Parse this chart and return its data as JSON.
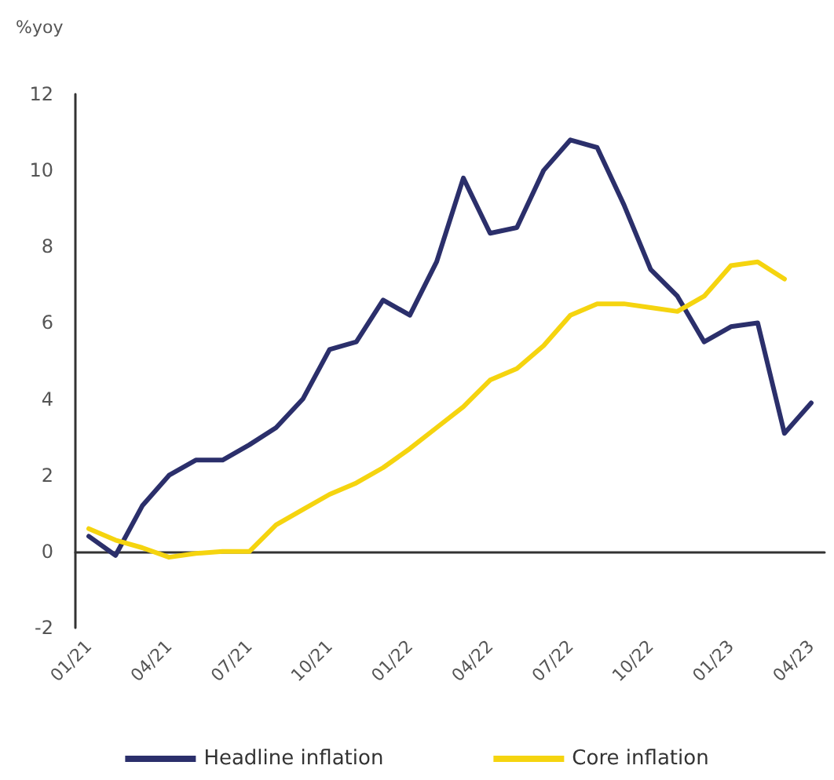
{
  "chart_data": {
    "type": "line",
    "ylabel": "%yoy",
    "categories": [
      "01/21",
      null,
      null,
      "04/21",
      null,
      null,
      "07/21",
      null,
      null,
      "10/21",
      null,
      null,
      "01/22",
      null,
      null,
      "04/22",
      null,
      null,
      "07/22",
      null,
      null,
      "10/22",
      null,
      null,
      "01/23",
      null,
      null,
      "04/23"
    ],
    "series": [
      {
        "name": "Headline inflation",
        "color": "#2b2f6b",
        "values": [
          0.4,
          -0.1,
          1.2,
          2.0,
          2.4,
          2.4,
          2.8,
          3.25,
          4.0,
          5.3,
          5.5,
          6.6,
          6.2,
          7.6,
          9.8,
          8.35,
          8.5,
          10.0,
          10.8,
          10.6,
          9.1,
          7.4,
          6.7,
          5.5,
          5.9,
          6.0,
          3.1,
          3.9
        ]
      },
      {
        "name": "Core inflation",
        "color": "#f5d40f",
        "values": [
          0.6,
          0.3,
          0.1,
          -0.15,
          -0.05,
          0.0,
          0.0,
          0.7,
          1.1,
          1.5,
          1.8,
          2.2,
          2.7,
          3.25,
          3.8,
          4.5,
          4.8,
          5.4,
          6.2,
          6.5,
          6.5,
          6.4,
          6.3,
          6.7,
          7.5,
          7.6,
          7.15,
          null
        ]
      }
    ],
    "ylim": [
      -2,
      12
    ],
    "yticks": [
      -2,
      0,
      2,
      4,
      6,
      8,
      10,
      12
    ],
    "legend": "bottom",
    "marker": "none",
    "line_style": "solid"
  }
}
